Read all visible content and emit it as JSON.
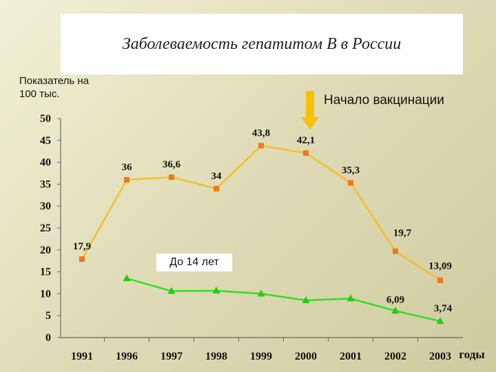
{
  "chart_data": {
    "type": "line",
    "title": "Заболеваемость гепатитом В в России",
    "ylabel": "Показатель на 100 тыс.",
    "xlabel": "годы",
    "categories": [
      "1991",
      "1996",
      "1997",
      "1998",
      "1999",
      "2000",
      "2001",
      "2002",
      "2003"
    ],
    "ylim": [
      0,
      50
    ],
    "yticks": [
      "0",
      "5",
      "10",
      "15",
      "20",
      "25",
      "30",
      "35",
      "40",
      "45",
      "50"
    ],
    "series": [
      {
        "name": "",
        "color": "#f5c12a",
        "marker": "square",
        "marker_color": "#f07818",
        "values": [
          17.9,
          36,
          36.6,
          34,
          43.8,
          42.1,
          35.3,
          19.7,
          13.09
        ],
        "labels": [
          "17,9",
          "36",
          "36,6",
          "34",
          "43,8",
          "42,1",
          "35,3",
          "19,7",
          "13,09"
        ]
      },
      {
        "name": "До 14 лет",
        "color": "#33dd22",
        "marker": "triangle",
        "marker_color": "#22cc11",
        "values": [
          null,
          13.5,
          10.6,
          10.7,
          10.0,
          8.5,
          8.9,
          6.09,
          3.74
        ],
        "labels": [
          "",
          "",
          "",
          "",
          "",
          "",
          "",
          "6,09",
          "3,74"
        ]
      }
    ],
    "annotations": [
      {
        "text": "Начало вакцинации",
        "at_category": "2000",
        "arrow_color": "#f5c100"
      }
    ]
  }
}
